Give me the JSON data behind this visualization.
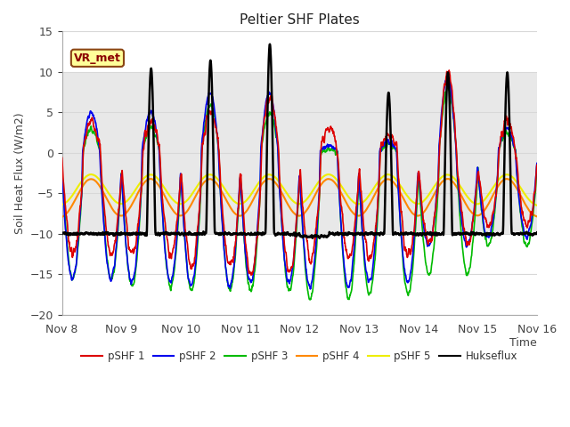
{
  "title": "Peltier SHF Plates",
  "ylabel": "Soil Heat Flux (W/m2)",
  "xlabel": "Time",
  "ylim": [
    -20,
    15
  ],
  "xlim": [
    0,
    8
  ],
  "xtick_labels": [
    "Nov 8",
    "Nov 9",
    "Nov 10",
    "Nov 11",
    "Nov 12",
    "Nov 13",
    "Nov 14",
    "Nov 15",
    "Nov 16"
  ],
  "xtick_positions": [
    0,
    1,
    2,
    3,
    4,
    5,
    6,
    7,
    8
  ],
  "ytick_positions": [
    -20,
    -15,
    -10,
    -5,
    0,
    5,
    10,
    15
  ],
  "plot_bg_color": "#ffffff",
  "fig_bg_color": "#ffffff",
  "shaded_ymin": -10,
  "shaded_ymax": 10,
  "shaded_color": "#e8e8e8",
  "grid_color": "#d8d8d8",
  "series": {
    "pSHF1": {
      "color": "#dd0000",
      "label": "pSHF 1",
      "lw": 1.2
    },
    "pSHF2": {
      "color": "#0000ee",
      "label": "pSHF 2",
      "lw": 1.2
    },
    "pSHF3": {
      "color": "#00bb00",
      "label": "pSHF 3",
      "lw": 1.2
    },
    "pSHF4": {
      "color": "#ff8800",
      "label": "pSHF 4",
      "lw": 1.5
    },
    "pSHF5": {
      "color": "#eeee00",
      "label": "pSHF 5",
      "lw": 1.5
    },
    "Hukseflux": {
      "color": "#000000",
      "label": "Hukseflux",
      "lw": 1.8
    }
  },
  "vr_met_box": {
    "text": "VR_met",
    "facecolor": "#ffff99",
    "edgecolor": "#8B4513",
    "text_color": "#8B0000",
    "fontsize": 9
  }
}
